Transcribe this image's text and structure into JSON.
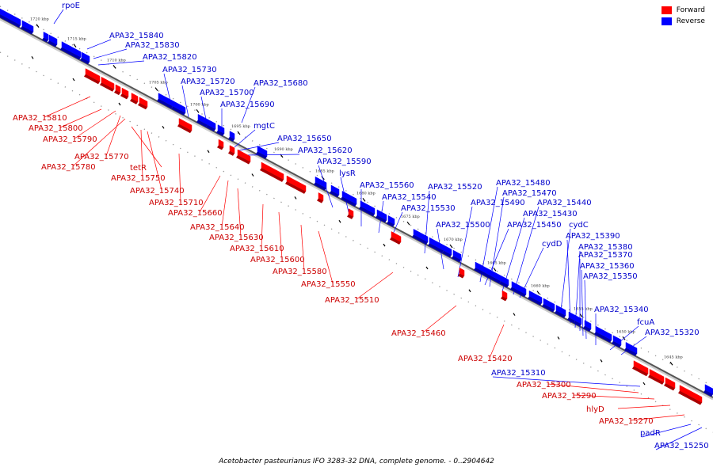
{
  "colors": {
    "forward": "#ff0000",
    "reverse": "#0000ff",
    "backbone": "#888888",
    "text_forward": "#cc0000",
    "text_reverse": "#0000cc"
  },
  "legend": {
    "forward": "Forward",
    "reverse": "Reverse"
  },
  "caption": "Acetobacter pasteurianus IFO 3283-32 DNA, complete genome. - 0..2904642",
  "ticks": [
    "1720 kbp",
    "1715 kbp",
    "1710 kbp",
    "1705 kbp",
    "1700 kbp",
    "1695 kbp",
    "1690 kbp",
    "1685 kbp",
    "1680 kbp",
    "1675 kbp",
    "1670 kbp",
    "1665 kbp",
    "1660 kbp",
    "1655 kbp",
    "1650 kbp",
    "1645 kbp"
  ],
  "reverse_labels": [
    "rpoE",
    "APA32_15840",
    "APA32_15830",
    "APA32_15820",
    "APA32_15730",
    "APA32_15720",
    "APA32_15680",
    "APA32_15700",
    "APA32_15690",
    "mgtC",
    "APA32_15650",
    "APA32_15620",
    "APA32_15590",
    "lysR",
    "APA32_15560",
    "APA32_15540",
    "APA32_15520",
    "APA32_15530",
    "APA32_15480",
    "APA32_15470",
    "APA32_15490",
    "APA32_15440",
    "APA32_15500",
    "APA32_15430",
    "APA32_15450",
    "cydC",
    "cydD",
    "APA32_15390",
    "APA32_15380",
    "APA32_15370",
    "APA32_15360",
    "APA32_15350",
    "APA32_15340",
    "fcuA",
    "APA32_15320",
    "APA32_15310",
    "padR",
    "APA32_15250"
  ],
  "forward_labels": [
    "APA32_15810",
    "APA32_15800",
    "APA32_15790",
    "APA32_15770",
    "APA32_15780",
    "tetR",
    "APA32_15750",
    "APA32_15740",
    "APA32_15710",
    "APA32_15660",
    "APA32_15640",
    "APA32_15630",
    "APA32_15610",
    "APA32_15600",
    "APA32_15580",
    "APA32_15550",
    "APA32_15510",
    "APA32_15460",
    "APA32_15420",
    "APA32_15300",
    "APA32_15290",
    "hlyD",
    "APA32_15270"
  ]
}
